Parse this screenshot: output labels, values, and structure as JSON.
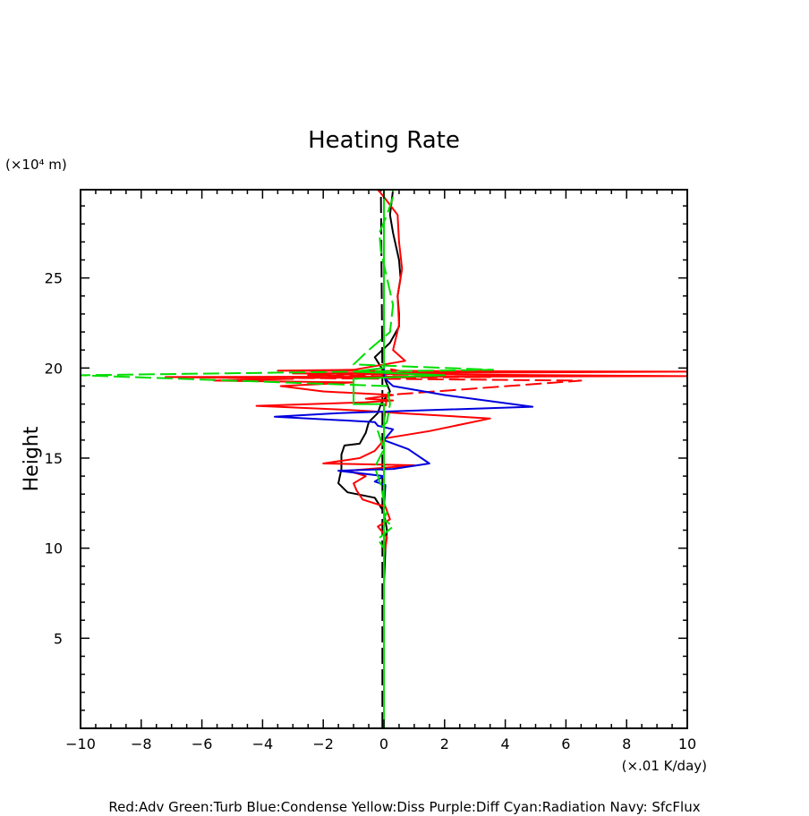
{
  "chart_data": {
    "type": "line",
    "title": "Heating Rate",
    "ylabel": "Height",
    "y_unit": "(×10⁴ m)",
    "x_unit": "(×.01 K/day)",
    "xlim": [
      -10,
      10
    ],
    "ylim": [
      0,
      29.9
    ],
    "xticks": [
      -10,
      -8,
      -6,
      -4,
      -2,
      0,
      2,
      4,
      6,
      8,
      10
    ],
    "yticks": [
      5,
      10,
      15,
      20,
      25
    ],
    "legend_caption": "Red:Adv Green:Turb Blue:Condense Yellow:Diss Purple:Diff Cyan:Radiation Navy: SfcFlux",
    "colors": {
      "red": "#ff0000",
      "green": "#00dd00",
      "blue": "#0000dd",
      "black": "#000000"
    },
    "series": [
      {
        "name": "Black",
        "color": "#000000",
        "dash": "solid",
        "points": [
          [
            0,
            0
          ],
          [
            0,
            8
          ],
          [
            0.05,
            10
          ],
          [
            0.1,
            11
          ],
          [
            0,
            12
          ],
          [
            -0.3,
            12.8
          ],
          [
            -1.2,
            13.1
          ],
          [
            -1.5,
            13.6
          ],
          [
            -1.4,
            14.4
          ],
          [
            -1.4,
            15.2
          ],
          [
            -1.3,
            15.7
          ],
          [
            -0.8,
            15.8
          ],
          [
            -0.6,
            16.4
          ],
          [
            -0.5,
            17
          ],
          [
            -0.2,
            17.5
          ],
          [
            -0.1,
            18
          ],
          [
            0.2,
            18.7
          ],
          [
            0.05,
            19.3
          ],
          [
            0,
            19.8
          ],
          [
            -0.3,
            20.6
          ],
          [
            0.2,
            21.4
          ],
          [
            0.5,
            22.3
          ],
          [
            0.5,
            23
          ],
          [
            0.45,
            24
          ],
          [
            0.55,
            25
          ],
          [
            0.5,
            26
          ],
          [
            0.3,
            27.5
          ],
          [
            0.2,
            28.5
          ],
          [
            0.3,
            29.9
          ]
        ]
      },
      {
        "name": "Black dashed",
        "color": "#000000",
        "dash": "dashed",
        "points": [
          [
            -0.05,
            0
          ],
          [
            -0.05,
            19.7
          ],
          [
            -0.1,
            29.9
          ]
        ]
      },
      {
        "name": "Red",
        "color": "#ff0000",
        "dash": "solid",
        "points": [
          [
            0,
            0
          ],
          [
            0,
            9.5
          ],
          [
            0.1,
            10.6
          ],
          [
            -0.2,
            11.2
          ],
          [
            0.2,
            11.6
          ],
          [
            0.05,
            12.3
          ],
          [
            -0.7,
            12.7
          ],
          [
            -0.9,
            13.2
          ],
          [
            -1,
            13.6
          ],
          [
            -0.6,
            14
          ],
          [
            -1.2,
            14.3
          ],
          [
            1,
            14.6
          ],
          [
            -2,
            14.7
          ],
          [
            -0.8,
            15
          ],
          [
            -0.3,
            15.4
          ],
          [
            0.05,
            16.1
          ],
          [
            1.5,
            16.5
          ],
          [
            3.5,
            17.2
          ],
          [
            0.5,
            17.5
          ],
          [
            -0.4,
            17.6
          ],
          [
            -1.5,
            17.7
          ],
          [
            -4.2,
            17.9
          ],
          [
            -0.6,
            18.1
          ],
          [
            0.3,
            18.2
          ],
          [
            -0.6,
            18.3
          ],
          [
            0.3,
            18.5
          ],
          [
            -2,
            18.7
          ],
          [
            -3.4,
            19
          ],
          [
            -1,
            19.2
          ],
          [
            -5.6,
            19.3
          ],
          [
            -3,
            19.4
          ],
          [
            -7.2,
            19.5
          ],
          [
            10,
            19.55
          ],
          [
            -3,
            19.7
          ],
          [
            10,
            19.8
          ],
          [
            -3.5,
            19.85
          ],
          [
            -1,
            19.9
          ],
          [
            0.7,
            20.4
          ],
          [
            0.3,
            21
          ],
          [
            0.5,
            22.4
          ],
          [
            0.45,
            24
          ],
          [
            0.6,
            25.5
          ],
          [
            0.5,
            27
          ],
          [
            0.45,
            28.5
          ],
          [
            0,
            29.5
          ],
          [
            -0.2,
            29.9
          ]
        ]
      },
      {
        "name": "Red dashed",
        "color": "#ff0000",
        "dash": "dashed",
        "points": [
          [
            0,
            0
          ],
          [
            0,
            17
          ],
          [
            0.1,
            18.5
          ],
          [
            6.5,
            19.3
          ],
          [
            -3,
            19.45
          ],
          [
            3.5,
            19.5
          ],
          [
            -2.5,
            19.6
          ],
          [
            1,
            19.7
          ],
          [
            0,
            20
          ],
          [
            0,
            29.9
          ]
        ]
      },
      {
        "name": "Blue",
        "color": "#0000dd",
        "dash": "solid",
        "points": [
          [
            0,
            0
          ],
          [
            0,
            12.3
          ],
          [
            0.05,
            13.5
          ],
          [
            -0.3,
            13.7
          ],
          [
            0,
            14
          ],
          [
            -1.5,
            14.3
          ],
          [
            0.3,
            14.4
          ],
          [
            1.5,
            14.7
          ],
          [
            0.8,
            15.5
          ],
          [
            0,
            16
          ],
          [
            0.3,
            16.6
          ],
          [
            -0.2,
            16.8
          ],
          [
            -0.3,
            17
          ],
          [
            -3.6,
            17.3
          ],
          [
            -1.5,
            17.5
          ],
          [
            4.9,
            17.85
          ],
          [
            2,
            18.5
          ],
          [
            0.3,
            19
          ],
          [
            0.1,
            19.3
          ],
          [
            0,
            19.5
          ],
          [
            0,
            29.9
          ]
        ]
      },
      {
        "name": "Green",
        "color": "#00dd00",
        "dash": "solid",
        "points": [
          [
            0,
            0
          ],
          [
            0,
            18
          ],
          [
            -1,
            18
          ],
          [
            -1,
            19.4
          ],
          [
            2,
            19.6
          ],
          [
            -1,
            19.8
          ],
          [
            0,
            20
          ],
          [
            0,
            29.9
          ]
        ]
      },
      {
        "name": "Green dashed",
        "color": "#00dd00",
        "dash": "dashed",
        "points": [
          [
            0,
            0
          ],
          [
            0,
            10
          ],
          [
            -0.2,
            10.5
          ],
          [
            0.3,
            11.2
          ],
          [
            0,
            11.6
          ],
          [
            0.1,
            12
          ],
          [
            0,
            12.6
          ],
          [
            -0.1,
            13.5
          ],
          [
            -0.3,
            14.5
          ],
          [
            0,
            15.5
          ],
          [
            -0.2,
            16.5
          ],
          [
            0.1,
            17
          ],
          [
            0.2,
            18
          ],
          [
            0.1,
            19
          ],
          [
            -10,
            19.6
          ],
          [
            3.6,
            19.9
          ],
          [
            -1,
            20.2
          ],
          [
            -0.5,
            21
          ],
          [
            0.2,
            22
          ],
          [
            0.3,
            23.5
          ],
          [
            0.1,
            25
          ],
          [
            -0.1,
            26.5
          ],
          [
            -0.15,
            27.5
          ],
          [
            0.1,
            28.5
          ],
          [
            0.3,
            29.5
          ],
          [
            0.3,
            29.9
          ]
        ]
      }
    ]
  }
}
